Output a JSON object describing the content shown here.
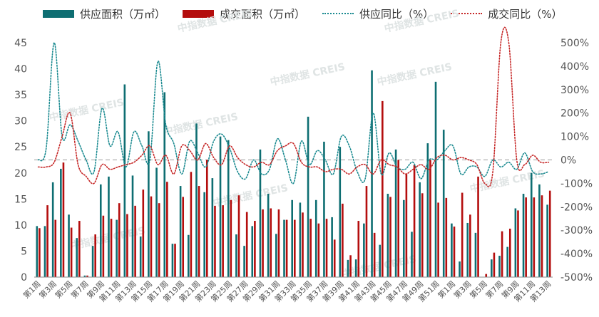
{
  "chart_data": {
    "type": "bar+line",
    "categories": [
      "第1周",
      "第2周",
      "第3周",
      "第4周",
      "第5周",
      "第6周",
      "第7周",
      "第8周",
      "第9周",
      "第10周",
      "第11周",
      "第12周",
      "第13周",
      "第14周",
      "第15周",
      "第16周",
      "第17周",
      "第18周",
      "第19周",
      "第20周",
      "第21周",
      "第22周",
      "第23周",
      "第24周",
      "第25周",
      "第26周",
      "第27周",
      "第28周",
      "第29周",
      "第30周",
      "第31周",
      "第32周",
      "第33周",
      "第34周",
      "第35周",
      "第36周",
      "第37周",
      "第38周",
      "第39周",
      "第40周",
      "第41周",
      "第42周",
      "第43周",
      "第44周",
      "第45周",
      "第46周",
      "第47周",
      "第48周",
      "第49周",
      "第50周",
      "第51周",
      "第52周",
      "第1周",
      "第2周",
      "第3周",
      "第4周",
      "第5周",
      "第6周",
      "第7周",
      "第8周",
      "第9周",
      "第10周",
      "第11周",
      "第12周",
      "第13周"
    ],
    "x_tick_labels": [
      "第1周",
      "第3周",
      "第5周",
      "第7周",
      "第9周",
      "第11周",
      "第13周",
      "第15周",
      "第17周",
      "第19周",
      "第21周",
      "第23周",
      "第25周",
      "第27周",
      "第29周",
      "第31周",
      "第33周",
      "第35周",
      "第37周",
      "第39周",
      "第41周",
      "第43周",
      "第45周",
      "第47周",
      "第49周",
      "第51周",
      "第1周",
      "第3周",
      "第5周",
      "第7周",
      "第9周",
      "第11周",
      "第13周"
    ],
    "series": [
      {
        "name": "供应面积（万㎡）",
        "type": "bar",
        "axis": "left",
        "color": "#0e6e72",
        "values": [
          9.8,
          9.8,
          18.2,
          20.8,
          12,
          7.5,
          0.3,
          6,
          17.8,
          19.3,
          11,
          37,
          19.5,
          7.8,
          28,
          21,
          35.5,
          6.4,
          17.5,
          8.1,
          29.5,
          16.3,
          19,
          27,
          26.3,
          8.2,
          6,
          9.8,
          24.5,
          16,
          8.3,
          11,
          14.8,
          14.3,
          30.8,
          14.8,
          26,
          11.5,
          25,
          3.3,
          3.4,
          10.3,
          39.7,
          6.2,
          16,
          24.5,
          14.8,
          8.7,
          18.2,
          25.7,
          37.5,
          28.3,
          10.3,
          3,
          10.4,
          8.5,
          0,
          3.4,
          4.1,
          5.8,
          13.2,
          16,
          20,
          17.8,
          13.9
        ]
      },
      {
        "name": "成交面积（万㎡）",
        "type": "bar",
        "axis": "left",
        "color": "#b40d0d",
        "values": [
          9.4,
          13.8,
          11,
          22,
          9.5,
          10.8,
          0.3,
          8.2,
          11.8,
          11.2,
          14.2,
          12.1,
          13.7,
          16.8,
          15.5,
          14.2,
          18.3,
          6.4,
          15.4,
          20.2,
          17.5,
          22.5,
          13.7,
          13.8,
          14.8,
          15.7,
          12.5,
          10.8,
          13,
          13.2,
          13,
          11,
          11,
          12.4,
          11.2,
          10.3,
          11.2,
          7.2,
          14.1,
          4.2,
          10.8,
          17.5,
          8.5,
          33.8,
          15.4,
          22.5,
          19.8,
          21.5,
          16.1,
          22.5,
          14.3,
          15.2,
          9.7,
          16.2,
          12,
          19.3,
          0.6,
          4.7,
          8.8,
          9.3,
          12.8,
          15.3,
          15.3,
          15.7,
          16.6
        ]
      },
      {
        "name": "供应同比（%）",
        "type": "line",
        "axis": "right",
        "style": "dotted",
        "color": "#1a8a90",
        "values": [
          0,
          50,
          500,
          100,
          150,
          80,
          0,
          -50,
          220,
          60,
          120,
          -30,
          120,
          60,
          0,
          420,
          150,
          70,
          -60,
          80,
          30,
          -30,
          80,
          110,
          50,
          -50,
          -80,
          0,
          -60,
          -40,
          90,
          0,
          -100,
          80,
          -20,
          40,
          0,
          -60,
          100,
          60,
          -50,
          -80,
          200,
          -60,
          30,
          -30,
          -40,
          -10,
          -80,
          0,
          0,
          40,
          60,
          -60,
          -30,
          -30,
          -70,
          0,
          -30,
          -10,
          -40,
          30,
          -50,
          -60,
          -50
        ]
      },
      {
        "name": "成交同比（%）",
        "type": "line",
        "axis": "right",
        "style": "dotted",
        "color": "#c62828",
        "values": [
          -30,
          -30,
          -10,
          100,
          200,
          -20,
          -70,
          -100,
          -20,
          -40,
          -30,
          -20,
          -10,
          20,
          60,
          -20,
          20,
          -60,
          60,
          40,
          0,
          70,
          10,
          -20,
          60,
          10,
          -20,
          -30,
          -10,
          -20,
          40,
          60,
          70,
          -10,
          -30,
          -30,
          -50,
          -40,
          -40,
          -60,
          -30,
          -20,
          -60,
          0,
          -20,
          -30,
          -60,
          -40,
          -20,
          -40,
          10,
          20,
          0,
          10,
          0,
          -20,
          -100,
          -50,
          500,
          500,
          0,
          -20,
          20,
          -10,
          -10
        ]
      }
    ],
    "y_left": {
      "min": 0,
      "max": 45,
      "ticks": [
        "0",
        "5",
        "10",
        "15",
        "20",
        "25",
        "30",
        "35",
        "40",
        "45"
      ]
    },
    "y_right": {
      "min": -500,
      "max": 500,
      "ticks": [
        "-500%",
        "-400%",
        "-300%",
        "-200%",
        "-100%",
        "0%",
        "100%",
        "200%",
        "300%",
        "400%",
        "500%"
      ]
    },
    "legend_position": "top",
    "grid": false,
    "zero_reference_line": "dashed gray at 0% (right axis)",
    "watermark": "中指数据 CREIS"
  }
}
